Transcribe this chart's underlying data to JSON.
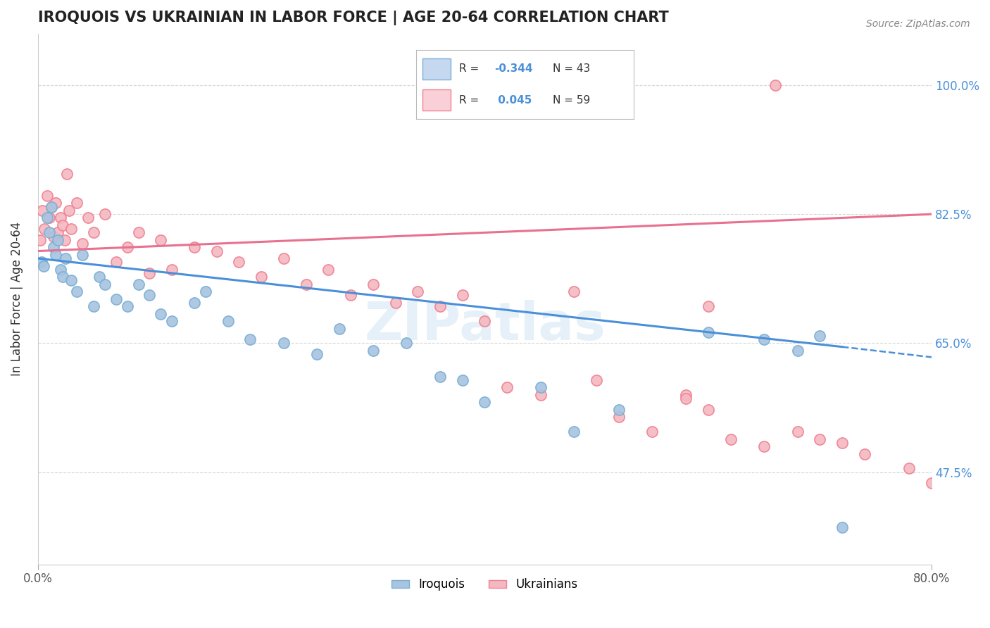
{
  "title": "IROQUOIS VS UKRAINIAN IN LABOR FORCE | AGE 20-64 CORRELATION CHART",
  "source_text": "Source: ZipAtlas.com",
  "ylabel": "In Labor Force | Age 20-64",
  "xlim": [
    0.0,
    80.0
  ],
  "ylim": [
    35.0,
    107.0
  ],
  "xtick_labels": [
    "0.0%",
    "80.0%"
  ],
  "xtick_positions": [
    0.0,
    80.0
  ],
  "ytick_labels": [
    "47.5%",
    "65.0%",
    "82.5%",
    "100.0%"
  ],
  "ytick_positions": [
    47.5,
    65.0,
    82.5,
    100.0
  ],
  "iroquois_color": "#a8c4e0",
  "ukrainian_color": "#f4b8c1",
  "iroquois_edge_color": "#7aafd4",
  "ukrainian_edge_color": "#f08090",
  "trend_blue": "#4a90d9",
  "trend_pink": "#e87090",
  "legend_blue_bg": "#c5d8f0",
  "legend_pink_bg": "#f9d0d8",
  "iroquois_x": [
    0.3,
    0.5,
    0.8,
    1.0,
    1.2,
    1.4,
    1.6,
    1.8,
    2.0,
    2.2,
    2.5,
    3.0,
    3.5,
    4.0,
    5.0,
    5.5,
    6.0,
    7.0,
    8.0,
    9.0,
    10.0,
    11.0,
    12.0,
    14.0,
    15.0,
    17.0,
    19.0,
    22.0,
    25.0,
    27.0,
    30.0,
    33.0,
    36.0,
    38.0,
    40.0,
    45.0,
    48.0,
    52.0,
    60.0,
    65.0,
    68.0,
    70.0,
    72.0
  ],
  "iroquois_y": [
    76.0,
    75.5,
    82.0,
    80.0,
    83.5,
    78.0,
    77.0,
    79.0,
    75.0,
    74.0,
    76.5,
    73.5,
    72.0,
    77.0,
    70.0,
    74.0,
    73.0,
    71.0,
    70.0,
    73.0,
    71.5,
    69.0,
    68.0,
    70.5,
    72.0,
    68.0,
    65.5,
    65.0,
    63.5,
    67.0,
    64.0,
    65.0,
    60.5,
    60.0,
    57.0,
    59.0,
    53.0,
    56.0,
    66.5,
    65.5,
    64.0,
    66.0,
    40.0
  ],
  "ukrainian_x": [
    0.2,
    0.4,
    0.6,
    0.8,
    1.0,
    1.2,
    1.4,
    1.6,
    1.8,
    2.0,
    2.2,
    2.4,
    2.6,
    2.8,
    3.0,
    3.5,
    4.0,
    4.5,
    5.0,
    6.0,
    7.0,
    8.0,
    9.0,
    10.0,
    11.0,
    12.0,
    14.0,
    16.0,
    18.0,
    20.0,
    22.0,
    24.0,
    26.0,
    28.0,
    30.0,
    32.0,
    34.0,
    36.0,
    38.0,
    40.0,
    42.0,
    45.0,
    48.0,
    50.0,
    52.0,
    55.0,
    58.0,
    60.0,
    62.0,
    65.0,
    66.0,
    68.0,
    70.0,
    72.0,
    74.0,
    78.0,
    80.0,
    58.0,
    60.0
  ],
  "ukrainian_y": [
    79.0,
    83.0,
    80.5,
    85.0,
    82.0,
    83.5,
    79.5,
    84.0,
    80.0,
    82.0,
    81.0,
    79.0,
    88.0,
    83.0,
    80.5,
    84.0,
    78.5,
    82.0,
    80.0,
    82.5,
    76.0,
    78.0,
    80.0,
    74.5,
    79.0,
    75.0,
    78.0,
    77.5,
    76.0,
    74.0,
    76.5,
    73.0,
    75.0,
    71.5,
    73.0,
    70.5,
    72.0,
    70.0,
    71.5,
    68.0,
    59.0,
    58.0,
    72.0,
    60.0,
    55.0,
    53.0,
    58.0,
    70.0,
    52.0,
    51.0,
    100.0,
    53.0,
    52.0,
    51.5,
    50.0,
    48.0,
    46.0,
    57.5,
    56.0
  ],
  "marker_size": 120,
  "watermark_text": "ZIPatlas",
  "grid_color": "#cccccc",
  "background_color": "#ffffff",
  "blue_trend_x0": 0.0,
  "blue_trend_y0": 76.5,
  "blue_trend_x1": 72.0,
  "blue_trend_y1": 64.5,
  "blue_dash_x0": 72.0,
  "blue_dash_y0": 64.5,
  "blue_dash_x1": 80.0,
  "blue_dash_y1": 63.1,
  "pink_trend_x0": 0.0,
  "pink_trend_y0": 77.5,
  "pink_trend_x1": 80.0,
  "pink_trend_y1": 82.5
}
